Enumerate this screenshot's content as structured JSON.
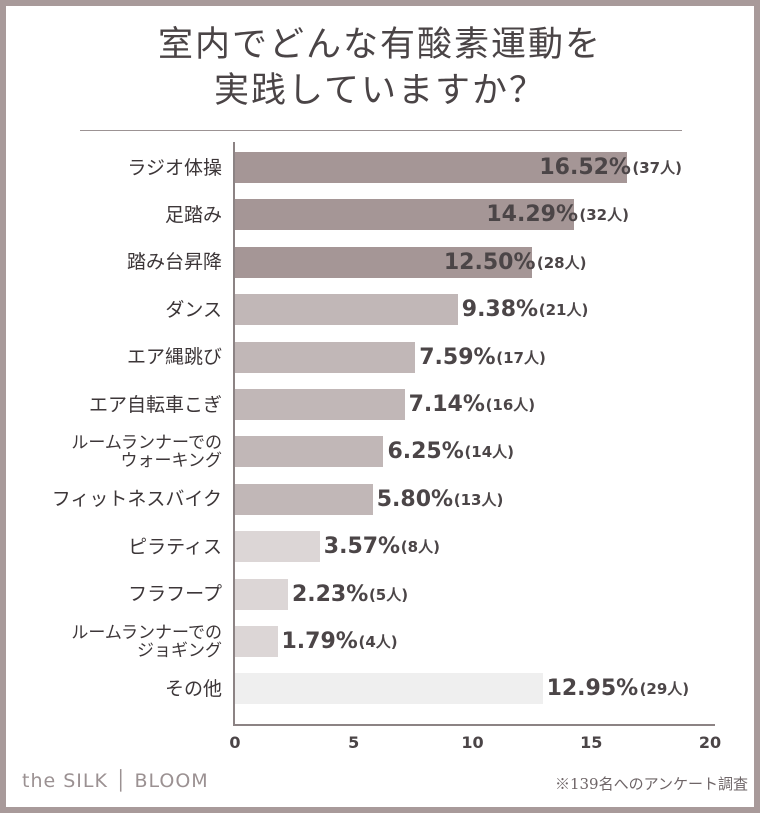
{
  "title": {
    "line1": "室内でどんな有酸素運動を",
    "line2": "実践していますか？"
  },
  "footer": {
    "brand": "the SILK │ BLOOM",
    "note": "※139名へのアンケート調査"
  },
  "chart_data": {
    "type": "bar",
    "orientation": "horizontal",
    "categories": [
      "ラジオ体操",
      "足踏み",
      "踏み台昇降",
      "ダンス",
      "エア縄跳び",
      "エア自転車こぎ",
      "ルームランナーでの\nウォーキング",
      "フィットネスバイク",
      "ピラティス",
      "フラフープ",
      "ルームランナーでの\nジョギング",
      "その他"
    ],
    "values": [
      16.52,
      14.29,
      12.5,
      9.38,
      7.59,
      7.14,
      6.25,
      5.8,
      3.57,
      2.23,
      1.79,
      12.95
    ],
    "value_labels": [
      "16.52%",
      "14.29%",
      "12.50%",
      "9.38%",
      "7.59%",
      "7.14%",
      "6.25%",
      "5.80%",
      "3.57%",
      "2.23%",
      "1.79%",
      "12.95%"
    ],
    "counts": [
      "(37人)",
      "(32人)",
      "(28人)",
      "(21人)",
      "(17人)",
      "(16人)",
      "(14人)",
      "(13人)",
      "(8人)",
      "(5人)",
      "(4人)",
      "(29人)"
    ],
    "bar_colors": [
      "#a59696",
      "#a59696",
      "#a59696",
      "#c1b7b7",
      "#c1b7b7",
      "#c1b7b7",
      "#c1b7b7",
      "#c1b7b7",
      "#dcd6d6",
      "#dcd6d6",
      "#dcd6d6",
      "#efefef"
    ],
    "xlim": [
      0,
      20
    ],
    "xticks": [
      "0",
      "5",
      "10",
      "15",
      "20"
    ],
    "grid": false
  }
}
